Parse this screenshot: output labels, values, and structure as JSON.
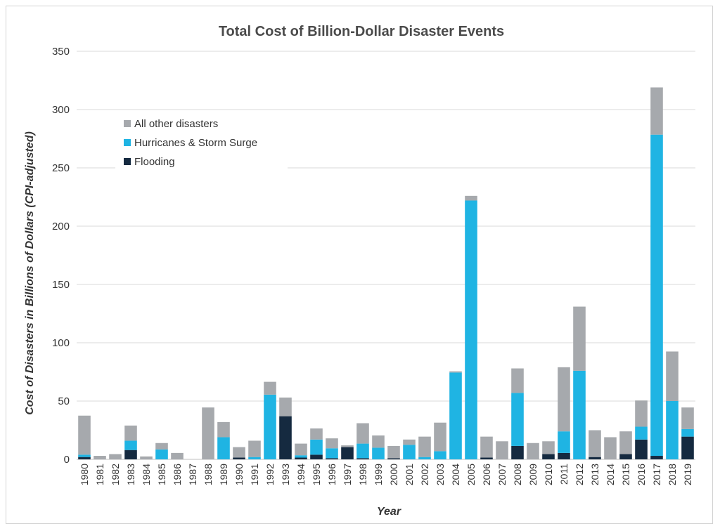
{
  "chart_data": {
    "type": "bar",
    "stacked": true,
    "title": "Total Cost of Billion-Dollar Disaster Events",
    "xlabel": "Year",
    "ylabel": "Cost of Disasters in Billions of Dollars (CPI-adjusted)",
    "ylim": [
      0,
      350
    ],
    "yticks": [
      0,
      50,
      100,
      150,
      200,
      250,
      300,
      350
    ],
    "grid": true,
    "legend_position": "top-left",
    "categories": [
      "1980",
      "1981",
      "1982",
      "1983",
      "1984",
      "1985",
      "1986",
      "1987",
      "1988",
      "1989",
      "1990",
      "1991",
      "1992",
      "1993",
      "1994",
      "1995",
      "1996",
      "1997",
      "1998",
      "1999",
      "2000",
      "2001",
      "2002",
      "2003",
      "2004",
      "2005",
      "2006",
      "2007",
      "2008",
      "2009",
      "2010",
      "2011",
      "2012",
      "2013",
      "2014",
      "2015",
      "2016",
      "2017",
      "2018",
      "2019"
    ],
    "series": [
      {
        "name": "Flooding",
        "color": "#152a40",
        "values": [
          2,
          0,
          0,
          8,
          0,
          0,
          0,
          0,
          0,
          0,
          1.5,
          0,
          0,
          37,
          1.5,
          4,
          1,
          10.5,
          1,
          0,
          1,
          0,
          0,
          0,
          0,
          0,
          1.5,
          0,
          11.5,
          0,
          4.5,
          5.5,
          0,
          2,
          0,
          4.5,
          17,
          3,
          0,
          19.5
        ]
      },
      {
        "name": "Hurricanes & Storm Surge",
        "color": "#1fb4e3",
        "values": [
          2,
          0,
          0,
          8,
          0,
          8.5,
          0,
          0,
          0,
          19,
          0,
          2,
          55.5,
          0,
          2,
          13,
          8.5,
          0,
          12.5,
          10,
          0,
          12.5,
          2,
          7,
          74.5,
          222,
          0,
          0,
          45.5,
          0,
          0,
          18.5,
          76,
          0,
          0,
          0,
          11,
          275.5,
          50,
          6.5
        ]
      },
      {
        "name": "All other disasters",
        "color": "#a6a9ad",
        "values": [
          33.5,
          3,
          4.5,
          13,
          2.5,
          5.5,
          5.5,
          0,
          44.5,
          13,
          9,
          14,
          11,
          16,
          10,
          9.5,
          8.5,
          1.5,
          17.5,
          10.5,
          10.5,
          4.5,
          17.5,
          24.5,
          1,
          4,
          18,
          15.5,
          21,
          14,
          11,
          55,
          55,
          23,
          19,
          19.5,
          22.5,
          40.5,
          42.5,
          18.5
        ]
      }
    ],
    "legend": [
      "All other disasters",
      "Hurricanes & Storm Surge",
      "Flooding"
    ]
  }
}
